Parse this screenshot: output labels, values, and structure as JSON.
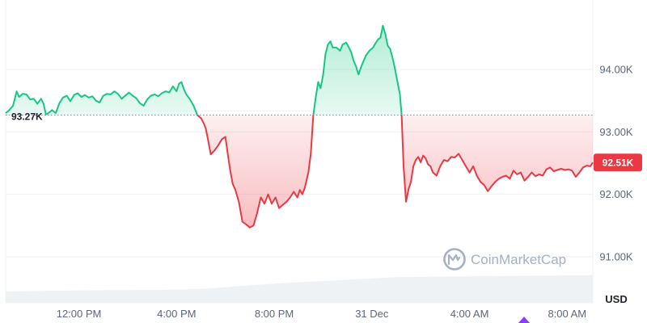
{
  "chart_data": {
    "type": "line",
    "y_ticks": [
      "94.00K",
      "93.00K",
      "92.00K",
      "91.00K"
    ],
    "y_tick_values": [
      94000,
      93000,
      92000,
      91000
    ],
    "ylim": [
      90700,
      94900
    ],
    "x_ticks": [
      "12:00 PM",
      "4:00 PM",
      "8:00 PM",
      "31 Dec",
      "4:00 AM",
      "8:00 AM"
    ],
    "x_tick_hours": [
      12,
      16,
      20,
      24,
      28,
      32
    ],
    "xlim_hours": [
      9.0,
      33.05
    ],
    "unit": "USD",
    "baseline": {
      "value": 93270,
      "label": "93.27K"
    },
    "current_price": {
      "value": 92510,
      "label": "92.51K"
    },
    "watermark": "CoinMarketCap",
    "colors": {
      "up": "#16c784",
      "down": "#ea3943",
      "volume": "#eff2f5",
      "grid": "#eff2f5"
    },
    "price_series": [
      [
        9.0,
        93300
      ],
      [
        9.15,
        93350
      ],
      [
        9.3,
        93420
      ],
      [
        9.45,
        93650
      ],
      [
        9.55,
        93560
      ],
      [
        9.7,
        93610
      ],
      [
        9.85,
        93600
      ],
      [
        10.0,
        93520
      ],
      [
        10.15,
        93530
      ],
      [
        10.3,
        93450
      ],
      [
        10.45,
        93530
      ],
      [
        10.55,
        93450
      ],
      [
        10.65,
        93280
      ],
      [
        10.75,
        93300
      ],
      [
        10.9,
        93350
      ],
      [
        11.05,
        93300
      ],
      [
        11.2,
        93460
      ],
      [
        11.35,
        93550
      ],
      [
        11.5,
        93580
      ],
      [
        11.65,
        93490
      ],
      [
        11.8,
        93590
      ],
      [
        11.95,
        93620
      ],
      [
        12.1,
        93560
      ],
      [
        12.25,
        93590
      ],
      [
        12.4,
        93550
      ],
      [
        12.55,
        93570
      ],
      [
        12.7,
        93500
      ],
      [
        12.85,
        93470
      ],
      [
        13.0,
        93580
      ],
      [
        13.15,
        93610
      ],
      [
        13.3,
        93600
      ],
      [
        13.45,
        93650
      ],
      [
        13.6,
        93610
      ],
      [
        13.75,
        93530
      ],
      [
        13.9,
        93580
      ],
      [
        14.05,
        93630
      ],
      [
        14.2,
        93580
      ],
      [
        14.35,
        93540
      ],
      [
        14.5,
        93460
      ],
      [
        14.65,
        93420
      ],
      [
        14.8,
        93520
      ],
      [
        14.95,
        93580
      ],
      [
        15.1,
        93600
      ],
      [
        15.25,
        93570
      ],
      [
        15.4,
        93620
      ],
      [
        15.55,
        93650
      ],
      [
        15.7,
        93630
      ],
      [
        15.85,
        93730
      ],
      [
        16.0,
        93650
      ],
      [
        16.1,
        93770
      ],
      [
        16.2,
        93800
      ],
      [
        16.3,
        93680
      ],
      [
        16.4,
        93600
      ],
      [
        16.55,
        93520
      ],
      [
        16.7,
        93420
      ],
      [
        16.85,
        93270
      ],
      [
        17.0,
        93220
      ],
      [
        17.1,
        93150
      ],
      [
        17.2,
        93050
      ],
      [
        17.3,
        92850
      ],
      [
        17.4,
        92640
      ],
      [
        17.55,
        92700
      ],
      [
        17.7,
        92780
      ],
      [
        17.85,
        92880
      ],
      [
        18.0,
        92920
      ],
      [
        18.1,
        92640
      ],
      [
        18.2,
        92380
      ],
      [
        18.3,
        92170
      ],
      [
        18.4,
        92080
      ],
      [
        18.55,
        91880
      ],
      [
        18.7,
        91560
      ],
      [
        18.85,
        91520
      ],
      [
        19.0,
        91470
      ],
      [
        19.15,
        91500
      ],
      [
        19.3,
        91700
      ],
      [
        19.45,
        91950
      ],
      [
        19.6,
        91850
      ],
      [
        19.75,
        92000
      ],
      [
        19.9,
        91850
      ],
      [
        20.05,
        91950
      ],
      [
        20.2,
        91780
      ],
      [
        20.35,
        91830
      ],
      [
        20.5,
        91880
      ],
      [
        20.65,
        91950
      ],
      [
        20.8,
        92040
      ],
      [
        20.95,
        91950
      ],
      [
        21.05,
        92070
      ],
      [
        21.15,
        92000
      ],
      [
        21.25,
        92100
      ],
      [
        21.4,
        92350
      ],
      [
        21.5,
        92650
      ],
      [
        21.6,
        93270
      ],
      [
        21.7,
        93550
      ],
      [
        21.8,
        93800
      ],
      [
        21.9,
        93700
      ],
      [
        22.0,
        93900
      ],
      [
        22.1,
        94250
      ],
      [
        22.2,
        94400
      ],
      [
        22.3,
        94450
      ],
      [
        22.4,
        94350
      ],
      [
        22.55,
        94350
      ],
      [
        22.7,
        94300
      ],
      [
        22.8,
        94400
      ],
      [
        22.95,
        94430
      ],
      [
        23.05,
        94360
      ],
      [
        23.15,
        94280
      ],
      [
        23.25,
        94140
      ],
      [
        23.35,
        94050
      ],
      [
        23.45,
        93920
      ],
      [
        23.6,
        94080
      ],
      [
        23.75,
        94220
      ],
      [
        23.9,
        94300
      ],
      [
        24.05,
        94350
      ],
      [
        24.15,
        94420
      ],
      [
        24.25,
        94480
      ],
      [
        24.35,
        94510
      ],
      [
        24.45,
        94700
      ],
      [
        24.55,
        94570
      ],
      [
        24.65,
        94380
      ],
      [
        24.75,
        94330
      ],
      [
        24.85,
        94180
      ],
      [
        24.95,
        94000
      ],
      [
        25.05,
        93800
      ],
      [
        25.15,
        93600
      ],
      [
        25.22,
        93270
      ],
      [
        25.3,
        92450
      ],
      [
        25.4,
        91880
      ],
      [
        25.5,
        92080
      ],
      [
        25.6,
        92200
      ],
      [
        25.7,
        92450
      ],
      [
        25.8,
        92550
      ],
      [
        25.9,
        92600
      ],
      [
        26.0,
        92510
      ],
      [
        26.1,
        92620
      ],
      [
        26.2,
        92580
      ],
      [
        26.3,
        92480
      ],
      [
        26.4,
        92450
      ],
      [
        26.5,
        92350
      ],
      [
        26.65,
        92300
      ],
      [
        26.8,
        92450
      ],
      [
        26.95,
        92550
      ],
      [
        27.1,
        92530
      ],
      [
        27.25,
        92600
      ],
      [
        27.4,
        92590
      ],
      [
        27.55,
        92650
      ],
      [
        27.7,
        92550
      ],
      [
        27.85,
        92450
      ],
      [
        28.0,
        92350
      ],
      [
        28.15,
        92450
      ],
      [
        28.3,
        92300
      ],
      [
        28.45,
        92200
      ],
      [
        28.6,
        92150
      ],
      [
        28.75,
        92050
      ],
      [
        28.9,
        92130
      ],
      [
        29.05,
        92200
      ],
      [
        29.2,
        92250
      ],
      [
        29.35,
        92280
      ],
      [
        29.5,
        92300
      ],
      [
        29.65,
        92250
      ],
      [
        29.8,
        92380
      ],
      [
        29.95,
        92320
      ],
      [
        30.1,
        92350
      ],
      [
        30.25,
        92220
      ],
      [
        30.4,
        92280
      ],
      [
        30.55,
        92350
      ],
      [
        30.7,
        92290
      ],
      [
        30.85,
        92320
      ],
      [
        31.0,
        92300
      ],
      [
        31.15,
        92400
      ],
      [
        31.3,
        92430
      ],
      [
        31.45,
        92370
      ],
      [
        31.6,
        92390
      ],
      [
        31.75,
        92410
      ],
      [
        31.9,
        92390
      ],
      [
        32.05,
        92400
      ],
      [
        32.2,
        92380
      ],
      [
        32.35,
        92280
      ],
      [
        32.5,
        92350
      ],
      [
        32.65,
        92430
      ],
      [
        32.8,
        92460
      ],
      [
        32.95,
        92450
      ],
      [
        33.05,
        92510
      ]
    ],
    "volume_series": [
      [
        9.0,
        0.25
      ],
      [
        12.0,
        0.27
      ],
      [
        15.0,
        0.28
      ],
      [
        17.0,
        0.3
      ],
      [
        19.0,
        0.38
      ],
      [
        21.0,
        0.45
      ],
      [
        23.0,
        0.5
      ],
      [
        25.0,
        0.56
      ],
      [
        27.0,
        0.57
      ],
      [
        29.0,
        0.58
      ],
      [
        31.0,
        0.59
      ],
      [
        33.05,
        0.6
      ]
    ]
  }
}
